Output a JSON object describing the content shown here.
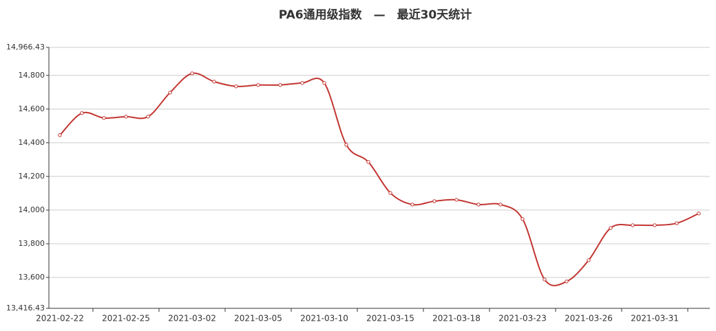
{
  "chart_data": {
    "type": "line",
    "title": "PA6通用级指数　—　最近30天统计",
    "categories": [
      "2021-02-22",
      null,
      null,
      "2021-02-25",
      null,
      null,
      "2021-03-02",
      null,
      null,
      "2021-03-05",
      null,
      null,
      "2021-03-10",
      null,
      null,
      "2021-03-15",
      null,
      null,
      "2021-03-18",
      null,
      null,
      "2021-03-23",
      null,
      null,
      "2021-03-26",
      null,
      null,
      "2021-03-31",
      null,
      null
    ],
    "values": [
      14445,
      14576,
      14547,
      14555,
      14555,
      14698,
      14812,
      14763,
      14735,
      14743,
      14743,
      14755,
      14755,
      14388,
      14286,
      14102,
      14033,
      14053,
      14061,
      14033,
      14033,
      13947,
      13588,
      13576,
      13702,
      13894,
      13910,
      13910,
      13922,
      13980
    ],
    "color": "#c23531",
    "ylim": [
      13416.43,
      14966.43
    ],
    "yticks": [
      {
        "value": 13416.43,
        "label": "13,416.43"
      },
      {
        "value": 13600,
        "label": "13,600"
      },
      {
        "value": 13800,
        "label": "13,800"
      },
      {
        "value": 14000,
        "label": "14,000"
      },
      {
        "value": 14200,
        "label": "14,200"
      },
      {
        "value": 14400,
        "label": "14,400"
      },
      {
        "value": 14600,
        "label": "14,600"
      },
      {
        "value": 14800,
        "label": "14,800"
      },
      {
        "value": 14966.43,
        "label": "14,966.43"
      }
    ],
    "grid": true,
    "smooth": true
  }
}
